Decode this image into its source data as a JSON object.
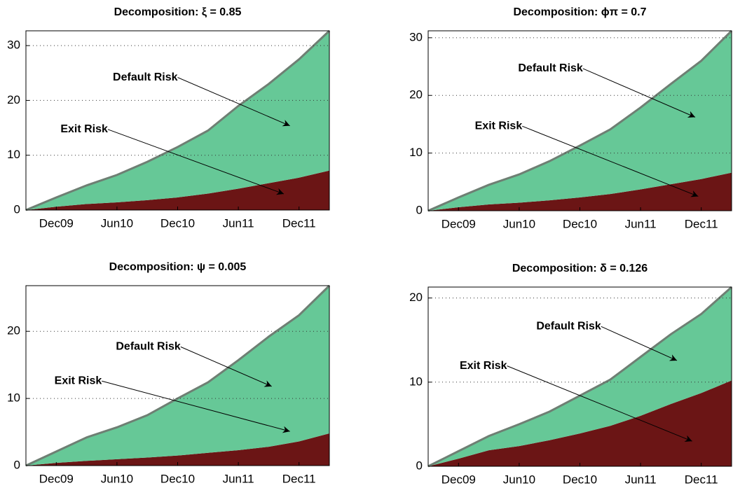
{
  "chart_data": [
    {
      "type": "stacked_area",
      "title": "Decomposition: ξ = 0.85",
      "categories": [
        null,
        "Dec09",
        null,
        "Jun10",
        null,
        "Dec10",
        null,
        "Jun11",
        null,
        "Dec11",
        null
      ],
      "series": [
        {
          "name": "Exit Risk",
          "color": "#6b1515",
          "values": [
            0,
            0.6,
            1.1,
            1.4,
            1.8,
            2.3,
            3.0,
            3.9,
            4.9,
            5.9,
            7.2
          ]
        },
        {
          "name": "Default Risk",
          "color": "#66c897",
          "values": [
            0,
            1.7,
            3.4,
            5.0,
            7.0,
            9.2,
            11.5,
            15.1,
            18.1,
            21.6,
            25.5
          ]
        }
      ],
      "ylim": [
        0,
        32.7
      ],
      "yticks": [
        0,
        10,
        20,
        30
      ],
      "grid": true
    },
    {
      "type": "stacked_area",
      "title": "Decomposition: ϕπ = 0.7",
      "categories": [
        null,
        "Dec09",
        null,
        "Jun10",
        null,
        "Dec10",
        null,
        "Jun11",
        null,
        "Dec11",
        null
      ],
      "series": [
        {
          "name": "Exit Risk",
          "color": "#6b1515",
          "values": [
            0,
            0.6,
            1.1,
            1.4,
            1.8,
            2.3,
            2.9,
            3.7,
            4.6,
            5.5,
            6.6
          ]
        },
        {
          "name": "Default Risk",
          "color": "#66c897",
          "values": [
            0,
            1.7,
            3.4,
            4.9,
            6.8,
            9.0,
            11.2,
            14.2,
            17.4,
            20.5,
            24.6
          ]
        }
      ],
      "ylim": [
        0,
        31.2
      ],
      "yticks": [
        0,
        10,
        20,
        30
      ],
      "grid": true
    },
    {
      "type": "stacked_area",
      "title": "Decomposition: ψ = 0.005",
      "categories": [
        null,
        "Dec09",
        null,
        "Jun10",
        null,
        "Dec10",
        null,
        "Jun11",
        null,
        "Dec11",
        null
      ],
      "series": [
        {
          "name": "Exit Risk",
          "color": "#6b1515",
          "values": [
            0,
            0.4,
            0.7,
            0.95,
            1.2,
            1.5,
            1.9,
            2.3,
            2.8,
            3.6,
            4.8
          ]
        },
        {
          "name": "Default Risk",
          "color": "#66c897",
          "values": [
            0,
            1.7,
            3.5,
            4.75,
            6.3,
            8.5,
            10.5,
            13.4,
            16.4,
            18.8,
            22.0
          ]
        }
      ],
      "ylim": [
        0,
        26.8
      ],
      "yticks": [
        0,
        10,
        20
      ],
      "grid": true
    },
    {
      "type": "stacked_area",
      "title": "Decomposition: δ = 0.126",
      "categories": [
        null,
        "Dec09",
        null,
        "Jun10",
        null,
        "Dec10",
        null,
        "Jun11",
        null,
        "Dec11",
        null
      ],
      "series": [
        {
          "name": "Exit Risk",
          "color": "#6b1515",
          "values": [
            0,
            0.9,
            1.9,
            2.4,
            3.1,
            3.9,
            4.8,
            6.0,
            7.4,
            8.7,
            10.2
          ]
        },
        {
          "name": "Default Risk",
          "color": "#66c897",
          "values": [
            0,
            0.9,
            1.7,
            2.6,
            3.4,
            4.5,
            5.5,
            7.0,
            8.3,
            9.4,
            11.1
          ]
        }
      ],
      "ylim": [
        0,
        21.3
      ],
      "yticks": [
        0,
        10,
        20
      ],
      "grid": true
    }
  ]
}
